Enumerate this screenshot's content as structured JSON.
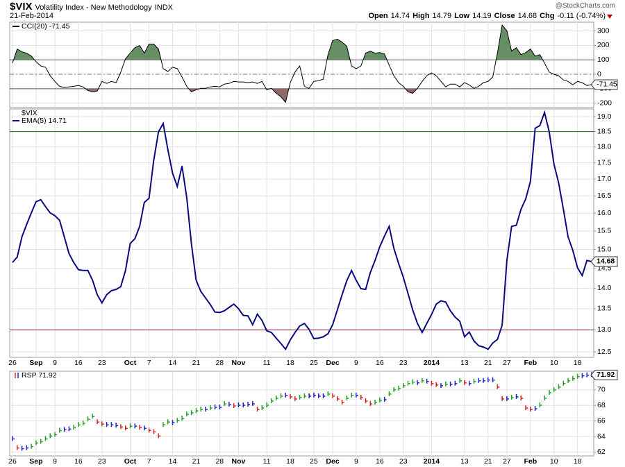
{
  "header": {
    "title": "$VIX",
    "name": "Volatility Index - New Methodology",
    "exchange": "INDX",
    "date": "21-Feb-2014",
    "credit": "@StockCharts.com",
    "quote": [
      {
        "label": "Open",
        "value": 14.74
      },
      {
        "label": "High",
        "value": 14.79
      },
      {
        "label": "Low",
        "value": 14.19
      },
      {
        "label": "Close",
        "value": 14.68
      },
      {
        "label": "Chg",
        "value": "-0.11 (-0.74%)"
      }
    ]
  },
  "x_axis": {
    "xlim": [
      -0.59,
      123.45
    ],
    "xticks": [
      {
        "value": 0,
        "label": "26"
      },
      {
        "value": 5,
        "label": "Sep",
        "bold": true
      },
      {
        "value": 9,
        "label": "9"
      },
      {
        "value": 14,
        "label": "16"
      },
      {
        "value": 19,
        "label": "23"
      },
      {
        "value": 25,
        "label": "Oct",
        "bold": true
      },
      {
        "value": 29,
        "label": "7"
      },
      {
        "value": 34,
        "label": "14"
      },
      {
        "value": 39,
        "label": "21"
      },
      {
        "value": 44,
        "label": "28"
      },
      {
        "value": 48,
        "label": "Nov",
        "bold": true
      },
      {
        "value": 54,
        "label": "11"
      },
      {
        "value": 59,
        "label": "18"
      },
      {
        "value": 64,
        "label": "25"
      },
      {
        "value": 68,
        "label": "Dec",
        "bold": true
      },
      {
        "value": 73,
        "label": "9"
      },
      {
        "value": 78,
        "label": "16"
      },
      {
        "value": 83,
        "label": "23"
      },
      {
        "value": 89,
        "label": "2014",
        "bold": true
      },
      {
        "value": 96,
        "label": "13"
      },
      {
        "value": 101,
        "label": "21"
      },
      {
        "value": 105,
        "label": "27"
      },
      {
        "value": 110,
        "label": "Feb",
        "bold": true
      },
      {
        "value": 115,
        "label": "10"
      },
      {
        "value": 120,
        "label": "18"
      }
    ]
  },
  "chart_data": [
    {
      "type": "line",
      "ylim": [
        -230,
        360
      ],
      "yticks": [
        300,
        200,
        100,
        0,
        -100,
        -200
      ],
      "grid": true,
      "reference_lines": [
        {
          "value": 100,
          "color": "#555555"
        },
        {
          "value": 0,
          "color": "#777777",
          "dashed": true
        },
        {
          "value": -100,
          "color": "#555555"
        }
      ],
      "fill_above": {
        "value": 100,
        "color": "#668f66"
      },
      "fill_below": {
        "value": -100,
        "color": "#8f6a6a"
      },
      "tag": true,
      "series": [
        {
          "name": "CCI(20) -71.45",
          "color": "#000000",
          "values": [
            78,
            175,
            155,
            146,
            126,
            87,
            58,
            49,
            -10,
            -49,
            -83,
            -92,
            -87,
            -83,
            -78,
            -87,
            -112,
            -121,
            -116,
            -49,
            -63,
            -49,
            -58,
            15,
            107,
            146,
            184,
            199,
            146,
            209,
            209,
            175,
            39,
            19,
            49,
            39,
            -19,
            -83,
            -121,
            -107,
            -97,
            -97,
            -87,
            -83,
            -87,
            -68,
            -63,
            -49,
            -53,
            -53,
            -58,
            -53,
            -63,
            -49,
            -107,
            -97,
            -131,
            -155,
            -194,
            -58,
            15,
            58,
            -83,
            -97,
            -49,
            -44,
            -34,
            136,
            233,
            243,
            223,
            194,
            58,
            39,
            58,
            146,
            160,
            146,
            150,
            141,
            63,
            -10,
            -58,
            -83,
            -121,
            -131,
            -97,
            -49,
            -10,
            10,
            -10,
            -49,
            -87,
            -68,
            -68,
            -87,
            -58,
            -73,
            -97,
            -83,
            -58,
            -49,
            -19,
            146,
            340,
            301,
            160,
            184,
            136,
            150,
            175,
            126,
            136,
            78,
            15,
            0,
            -10,
            -39,
            -49,
            -73,
            -49,
            -58,
            -78,
            -71.45
          ]
        }
      ]
    },
    {
      "type": "line",
      "log_scale": true,
      "ylim": [
        12.38,
        19.26
      ],
      "grid": true,
      "tag": true,
      "tag_bold": true,
      "legend_title": "$VIX",
      "yticks": [
        12.5,
        {
          "value": 13,
          "label": "13.0"
        },
        13.5,
        {
          "value": 14,
          "label": "14.0"
        },
        14.5,
        {
          "value": 15,
          "label": "15.0"
        },
        15.5,
        {
          "value": 16,
          "label": "16.0"
        },
        16.5,
        {
          "value": 17,
          "label": "17.0"
        },
        17.5,
        {
          "value": 18,
          "label": "18.0"
        },
        18.5,
        {
          "value": 19,
          "label": "19.0"
        }
      ],
      "reference_lines": [
        {
          "value": 18.5,
          "color": "#1a6b1a"
        },
        {
          "value": 13,
          "color": "#7a1a3a"
        }
      ],
      "series": [
        {
          "name": "EMA(5) 14.71",
          "color": "#0a0a80",
          "values": [
            14.66,
            14.8,
            15.34,
            15.68,
            16.01,
            16.33,
            16.39,
            16.19,
            16.01,
            15.93,
            15.8,
            15.34,
            14.89,
            14.66,
            14.47,
            14.45,
            14.45,
            14.2,
            13.84,
            13.64,
            13.84,
            13.94,
            13.97,
            14.04,
            14.45,
            15.16,
            15.29,
            15.63,
            16.31,
            16.43,
            17.58,
            18.49,
            18.77,
            17.92,
            17.18,
            16.78,
            17.4,
            16.45,
            15.16,
            14.2,
            13.92,
            13.76,
            13.6,
            13.42,
            13.41,
            13.45,
            13.53,
            13.61,
            13.5,
            13.34,
            13.33,
            13.12,
            13.37,
            13.22,
            12.98,
            12.94,
            12.81,
            12.69,
            12.56,
            12.77,
            12.94,
            13.09,
            13.15,
            13.01,
            12.8,
            12.81,
            12.84,
            12.91,
            13.12,
            13.47,
            13.84,
            14.19,
            14.45,
            14.2,
            13.99,
            13.97,
            14.4,
            14.71,
            15.07,
            15.36,
            15.63,
            15.03,
            14.63,
            14.28,
            13.87,
            13.47,
            13.15,
            12.94,
            13.15,
            13.36,
            13.61,
            13.69,
            13.66,
            13.45,
            13.3,
            13.2,
            12.84,
            12.95,
            12.75,
            12.64,
            12.61,
            12.56,
            12.7,
            12.78,
            13.11,
            14.71,
            15.63,
            15.66,
            16.11,
            16.41,
            16.93,
            18.61,
            18.7,
            19.14,
            18.49,
            17.46,
            16.88,
            16.11,
            15.34,
            14.98,
            14.52,
            14.32,
            14.71,
            14.68
          ]
        }
      ]
    },
    {
      "type": "ohlc",
      "ylim": [
        61.5,
        72.4
      ],
      "yticks": [
        62,
        64,
        66,
        68,
        70
      ],
      "grid": true,
      "tag": true,
      "tag_bold": true,
      "up_color": "#22a022",
      "down_color": "#dd2020",
      "flat_color": "#2020cc",
      "series": [
        {
          "name": "RSP 71.92",
          "values": [
            63.69,
            62.52,
            62.43,
            62.52,
            62.7,
            63.15,
            63.33,
            63.69,
            64.05,
            64.23,
            64.77,
            64.86,
            64.95,
            65.14,
            65.5,
            65.68,
            66.22,
            66.58,
            65.86,
            65.59,
            65.5,
            65.5,
            65.41,
            65.23,
            65.05,
            65.32,
            65.32,
            65.14,
            65.05,
            64.77,
            64.59,
            64.05,
            65.5,
            65.86,
            65.77,
            66.04,
            66.31,
            66.85,
            67.03,
            67.3,
            67.48,
            67.48,
            67.66,
            67.75,
            67.75,
            68.2,
            68.11,
            67.93,
            68.02,
            68.02,
            68.11,
            68.2,
            67.48,
            67.66,
            68.02,
            68.56,
            68.92,
            69.19,
            69.28,
            69.1,
            68.83,
            69.01,
            69.19,
            69.19,
            69.28,
            69.19,
            69.19,
            69.46,
            69.19,
            68.83,
            68.38,
            68.92,
            69.28,
            69.28,
            69.01,
            68.56,
            68.2,
            68.38,
            68.65,
            68.74,
            69.46,
            70.0,
            70.18,
            70.54,
            70.81,
            70.99,
            70.9,
            71.17,
            71.08,
            70.81,
            70.63,
            70.54,
            70.72,
            70.72,
            70.81,
            71.17,
            70.9,
            70.81,
            71.08,
            71.17,
            71.17,
            71.26,
            71.26,
            70.36,
            68.83,
            68.83,
            69.01,
            69.1,
            68.92,
            67.66,
            67.48,
            67.57,
            68.02,
            68.92,
            69.64,
            70.0,
            70.36,
            70.81,
            71.17,
            71.44,
            71.71,
            71.8,
            71.89,
            71.92
          ]
        }
      ]
    }
  ]
}
